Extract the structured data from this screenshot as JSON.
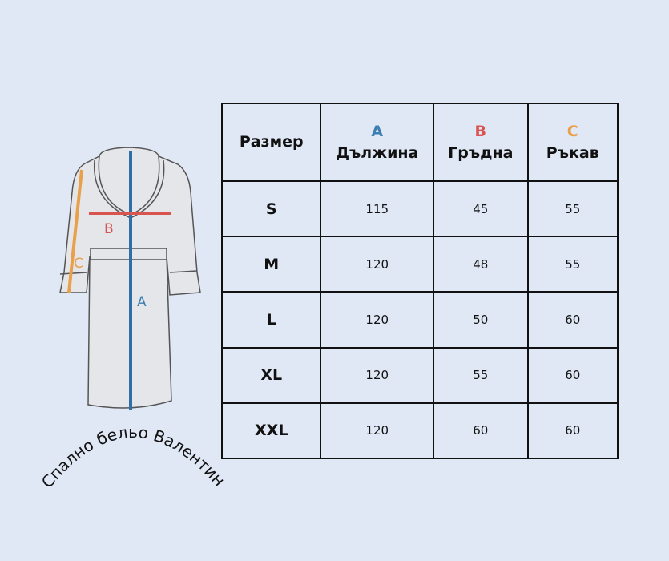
{
  "brand_text": "Спално бельо Валентина",
  "diagram": {
    "label_a": "A",
    "label_b": "B",
    "label_c": "C"
  },
  "colors": {
    "a": "#3b7fb0",
    "b": "#d9534f",
    "c": "#e8a04b",
    "background": "#e1e8f5"
  },
  "table": {
    "size_header": "Размер",
    "columns": [
      {
        "letter": "A",
        "label": "Дължина"
      },
      {
        "letter": "B",
        "label": "Гръдна"
      },
      {
        "letter": "C",
        "label": "Ръкав"
      }
    ],
    "rows": [
      {
        "size": "S",
        "values": [
          "115",
          "45",
          "55"
        ]
      },
      {
        "size": "M",
        "values": [
          "120",
          "48",
          "55"
        ]
      },
      {
        "size": "L",
        "values": [
          "120",
          "50",
          "60"
        ]
      },
      {
        "size": "XL",
        "values": [
          "120",
          "55",
          "60"
        ]
      },
      {
        "size": "XXL",
        "values": [
          "120",
          "60",
          "60"
        ]
      }
    ]
  }
}
